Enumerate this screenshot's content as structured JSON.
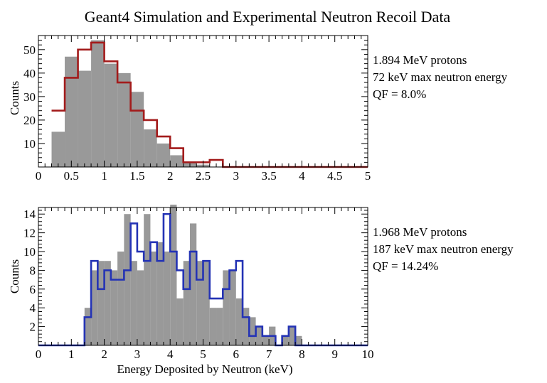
{
  "title": "Geant4 Simulation and Experimental Neutron Recoil Data",
  "colors": {
    "data_fill": "#999999",
    "sim_top": "#a31b1b",
    "sim_bottom": "#2433b5",
    "axis": "#000000"
  },
  "chart_data": [
    {
      "type": "bar",
      "name": "top",
      "ylabel": "Counts",
      "xlabel": "",
      "xlim": [
        0,
        5
      ],
      "ylim": [
        0,
        56
      ],
      "xticks": [
        "0",
        "0.5",
        "1",
        "1.5",
        "2",
        "2.5",
        "3",
        "3.5",
        "4",
        "4.5",
        "5"
      ],
      "yticks": [
        "10",
        "20",
        "30",
        "40",
        "50"
      ],
      "annotations": [
        "1.894 MeV protons",
        "72 keV max neutron energy",
        "QF = 8.0%"
      ],
      "bin_width": 0.2,
      "series": [
        {
          "name": "experimental",
          "style": "filled",
          "x": [
            0.2,
            0.4,
            0.6,
            0.8,
            1.0,
            1.2,
            1.4,
            1.6,
            1.8,
            2.0,
            2.2,
            2.4,
            2.6,
            2.8,
            3.0,
            3.2,
            3.4,
            3.6,
            3.8,
            4.0,
            4.2,
            4.4,
            4.6,
            4.8
          ],
          "values": [
            15,
            47,
            41,
            54,
            44,
            40,
            32,
            16,
            10,
            5,
            2,
            1,
            0,
            0,
            0,
            0,
            0,
            0,
            0,
            0,
            0,
            0,
            0,
            0
          ]
        },
        {
          "name": "simulation",
          "style": "step",
          "x": [
            0.2,
            0.4,
            0.6,
            0.8,
            1.0,
            1.2,
            1.4,
            1.6,
            1.8,
            2.0,
            2.2,
            2.4,
            2.6,
            2.8,
            3.0,
            3.2,
            3.4,
            3.6,
            3.8,
            4.0,
            4.2,
            4.4,
            4.6,
            4.8
          ],
          "values": [
            24,
            38,
            50,
            53,
            45,
            36,
            24,
            20,
            13,
            8,
            2,
            2,
            3,
            0,
            0,
            0,
            0,
            0,
            0,
            0,
            0,
            0,
            0,
            0
          ]
        }
      ]
    },
    {
      "type": "bar",
      "name": "bottom",
      "ylabel": "Counts",
      "xlabel": "Energy Deposited by Neutron (keV)",
      "xlim": [
        0,
        10
      ],
      "ylim": [
        0,
        14.7
      ],
      "xticks": [
        "0",
        "1",
        "2",
        "3",
        "4",
        "5",
        "6",
        "7",
        "8",
        "9",
        "10"
      ],
      "yticks": [
        "2",
        "4",
        "6",
        "8",
        "10",
        "12",
        "14"
      ],
      "annotations": [
        "1.968 MeV protons",
        "187 keV max neutron energy",
        "QF = 14.24%"
      ],
      "bin_width": 0.2,
      "series": [
        {
          "name": "experimental",
          "style": "filled",
          "x": [
            1.4,
            1.6,
            1.8,
            2.0,
            2.2,
            2.4,
            2.6,
            2.8,
            3.0,
            3.2,
            3.4,
            3.6,
            3.8,
            4.0,
            4.2,
            4.4,
            4.6,
            4.8,
            5.0,
            5.2,
            5.4,
            5.6,
            5.8,
            6.0,
            6.2,
            6.4,
            6.6,
            6.8,
            7.0,
            7.2,
            7.4,
            7.6,
            7.8
          ],
          "values": [
            4,
            8,
            9,
            9,
            8,
            10,
            14,
            9,
            8,
            14,
            10,
            11,
            10,
            15,
            5,
            9,
            13,
            9,
            9,
            4,
            4,
            8,
            8,
            5,
            4,
            3,
            2,
            1,
            2,
            0,
            1,
            2,
            1
          ]
        },
        {
          "name": "simulation",
          "style": "step",
          "x": [
            0.0,
            0.2,
            0.4,
            0.6,
            0.8,
            1.0,
            1.2,
            1.4,
            1.6,
            1.8,
            2.0,
            2.2,
            2.4,
            2.6,
            2.8,
            3.0,
            3.2,
            3.4,
            3.6,
            3.8,
            4.0,
            4.2,
            4.4,
            4.6,
            4.8,
            5.0,
            5.2,
            5.4,
            5.6,
            5.8,
            6.0,
            6.2,
            6.4,
            6.6,
            6.8,
            7.0,
            7.2,
            7.4,
            7.6,
            7.8,
            8.0,
            8.2,
            8.4,
            8.6,
            8.8,
            9.0,
            9.2,
            9.4,
            9.6,
            9.8
          ],
          "values": [
            0,
            0,
            0,
            0,
            0,
            0,
            0,
            3,
            9,
            6,
            8,
            7,
            7,
            8,
            13,
            10,
            9,
            11,
            9,
            14,
            10,
            8,
            6,
            10,
            7,
            9,
            5,
            5,
            6,
            8,
            9,
            3,
            1,
            2,
            1,
            1,
            0,
            1,
            2,
            0,
            0,
            0,
            0,
            0,
            0,
            0,
            0,
            0,
            0,
            0
          ]
        }
      ]
    }
  ]
}
